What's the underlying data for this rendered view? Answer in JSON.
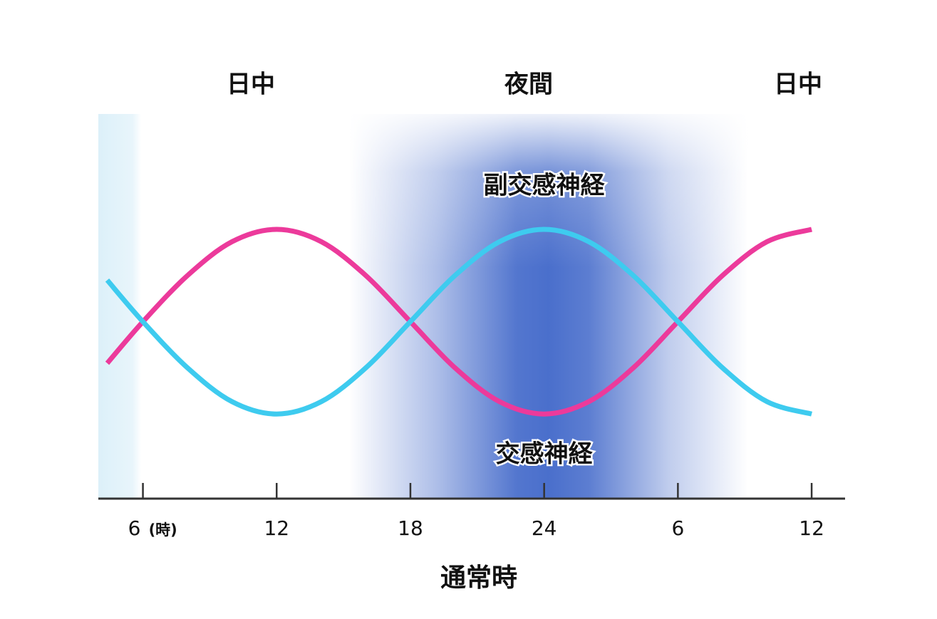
{
  "chart_data": {
    "type": "line",
    "title": "通常時",
    "period_labels": [
      "日中",
      "夜間",
      "日中"
    ],
    "x_unit_label": "(時)",
    "x": [
      4.4,
      6,
      8,
      10,
      12,
      14,
      16,
      18,
      20,
      22,
      24,
      26,
      28,
      30,
      32,
      34,
      36
    ],
    "series": [
      {
        "name": "交感神経",
        "color": "#ec3a9b",
        "values": [
          35.2,
          46,
          58,
          66.8,
          70,
          66.8,
          58,
          46,
          34,
          25.2,
          22,
          25.2,
          34,
          46,
          58,
          66.8,
          70
        ]
      },
      {
        "name": "副交感神経",
        "color": "#3ecbef",
        "values": [
          56.8,
          46,
          34,
          25.2,
          22,
          25.2,
          34,
          46,
          58,
          66.8,
          70,
          66.8,
          58,
          46,
          34,
          25.2,
          22
        ]
      }
    ],
    "xlim": [
      4,
      37.5
    ],
    "xticks": [
      6,
      12,
      18,
      24,
      {
        "value": 30,
        "label": "6"
      },
      {
        "value": 36,
        "label": "12"
      }
    ],
    "ylim": [
      0,
      100
    ]
  }
}
